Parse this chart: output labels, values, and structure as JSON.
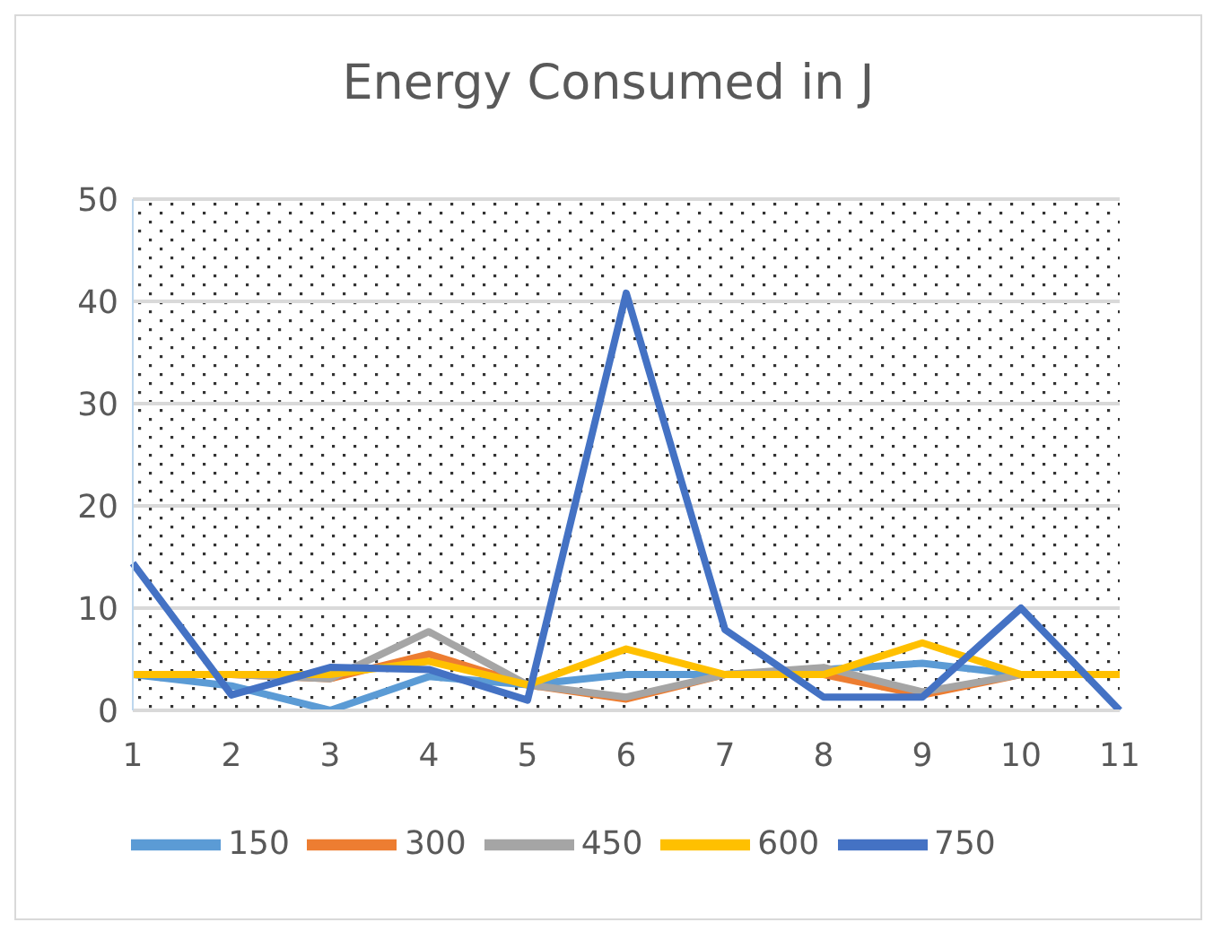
{
  "chart_data": {
    "type": "line",
    "title": "Energy Consumed in J",
    "categories": [
      "1",
      "2",
      "3",
      "4",
      "5",
      "6",
      "7",
      "8",
      "9",
      "10",
      "11"
    ],
    "series": [
      {
        "name": "150",
        "color": "#5b9bd5",
        "values": [
          3.5,
          2.4,
          0,
          3.3,
          2.5,
          3.5,
          3.5,
          4,
          4.6,
          3.5,
          null
        ]
      },
      {
        "name": "300",
        "color": "#ed7d31",
        "values": [
          3.5,
          3.5,
          3.1,
          5.5,
          2.5,
          1.1,
          3.5,
          3.5,
          1.5,
          3.5,
          3.5
        ]
      },
      {
        "name": "450",
        "color": "#a5a5a5",
        "values": [
          null,
          3.5,
          3.1,
          7.7,
          2.5,
          1.3,
          3.5,
          4.2,
          1.8,
          3.5,
          null
        ]
      },
      {
        "name": "600",
        "color": "#ffc000",
        "values": [
          3.5,
          3.5,
          3.5,
          4.8,
          2.5,
          6,
          3.5,
          3.5,
          6.6,
          3.5,
          3.5
        ]
      },
      {
        "name": "750",
        "color": "#4472c4",
        "values": [
          14.4,
          1.5,
          4.2,
          4,
          1,
          40.8,
          7.9,
          1.3,
          1.3,
          10,
          0
        ]
      }
    ],
    "ylim": [
      0,
      50
    ],
    "yticks": [
      0,
      10,
      20,
      30,
      40,
      50
    ],
    "grid": "y",
    "legend": "bottom",
    "marker": "none",
    "line_style": "solid"
  }
}
